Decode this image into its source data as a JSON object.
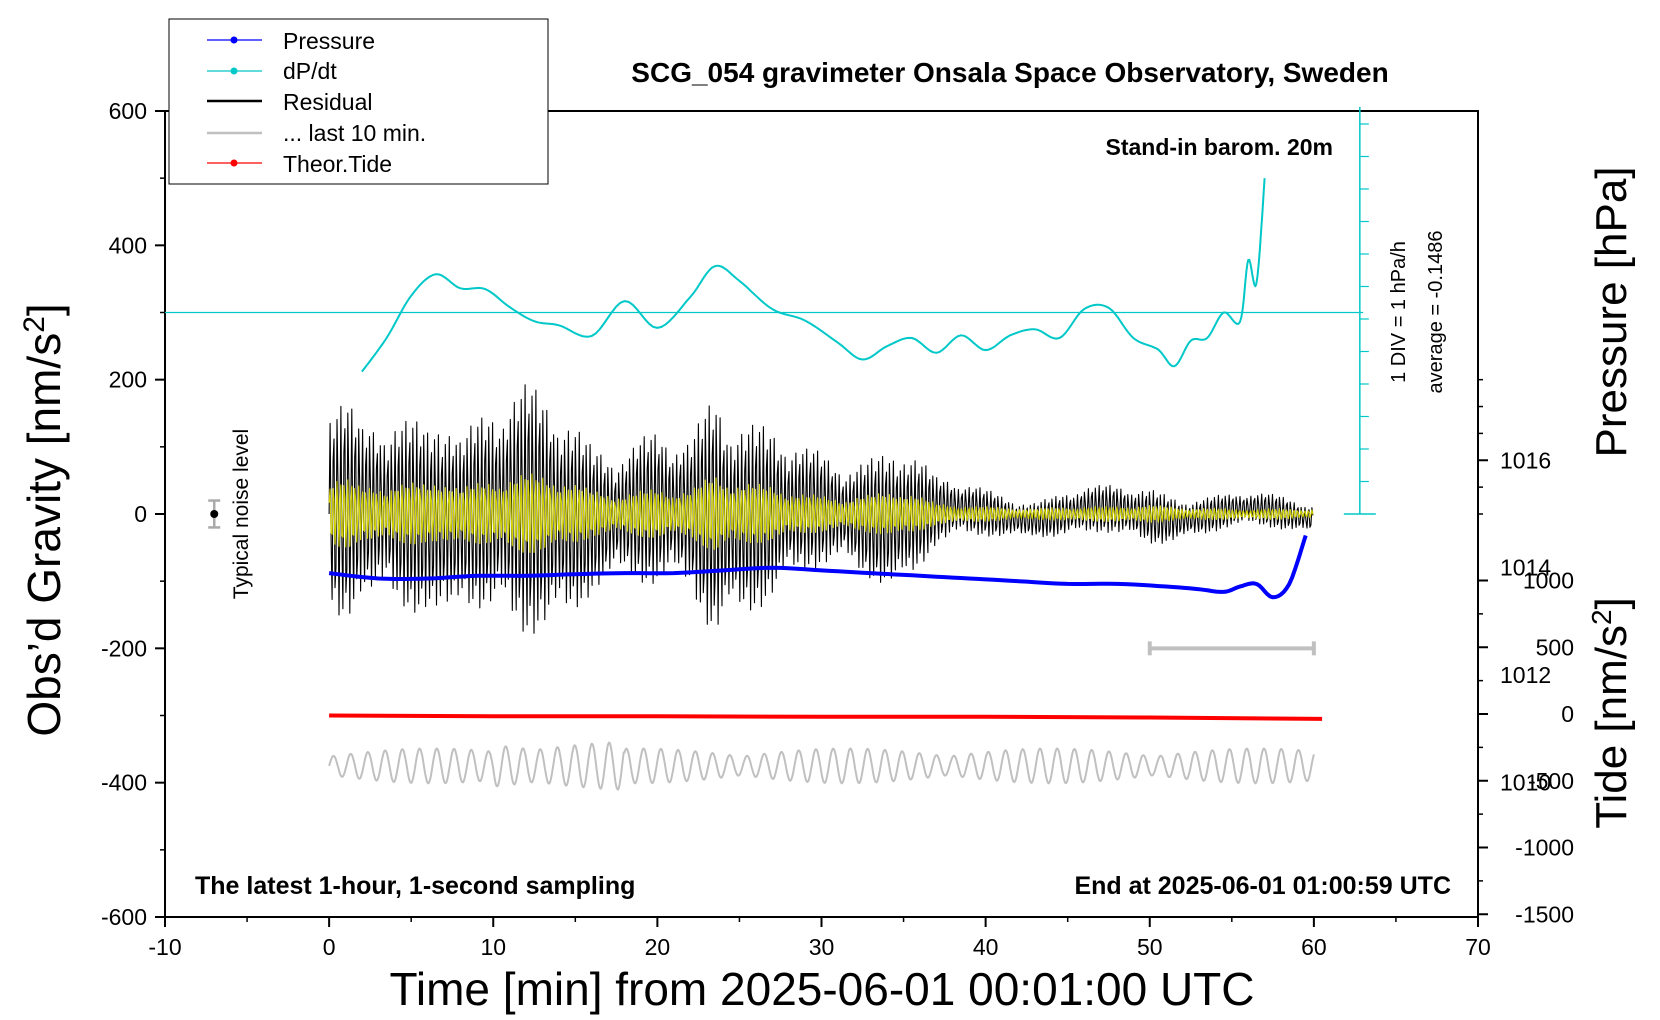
{
  "chart_data": {
    "type": "line",
    "title": "SCG_054 gravimeter Onsala Space Observatory, Sweden",
    "xlabel": "Time [min] from 2025-06-01 00:01:00 UTC",
    "ylabel_left": "Obs’d Gravity [nm/s²]",
    "ylabel_right_upper": "Pressure [hPa]",
    "ylabel_right_lower": "Tide [nm/s²]",
    "xlim": [
      -10,
      70
    ],
    "ylim": [
      -600,
      600
    ],
    "pressure_ylim": [
      1008,
      1018
    ],
    "tide_ylim": [
      -1500,
      1500
    ],
    "x_ticks": [
      "-10",
      "0",
      "10",
      "20",
      "30",
      "40",
      "50",
      "60",
      "70"
    ],
    "y_ticks": [
      "600",
      "400",
      "200",
      "0",
      "-200",
      "-400",
      "-600"
    ],
    "pressure_ticks": [
      "1016",
      "1014",
      "1012",
      "1010"
    ],
    "tide_ticks": [
      "1000",
      "500",
      "0",
      "-500",
      "-1000",
      "-1500"
    ],
    "legend": [
      {
        "name": "Pressure",
        "color": "#0000ff",
        "marker": true
      },
      {
        "name": "dP/dt",
        "color": "#00c8c8",
        "marker": true
      },
      {
        "name": "Residual",
        "color": "#000000",
        "marker": false
      },
      {
        "name": "... last 10 min.",
        "color": "#c0c0c0",
        "marker": false
      },
      {
        "name": "Theor.Tide",
        "color": "#ff0000",
        "marker": true
      }
    ],
    "legend_position": "top-left",
    "annotations": {
      "stand_in": "Stand-in barom. 20m",
      "div_label": "1 DIV = 1 hPa/h",
      "average_label": "average = -0.1486",
      "noise_label": "Typical noise level",
      "bottom_left": "The latest 1-hour, 1-second sampling",
      "bottom_right": "End at 2025-06-01 01:00:59 UTC"
    },
    "series": [
      {
        "name": "Pressure",
        "color": "#0000ff",
        "x": [
          0,
          3,
          6,
          9,
          12,
          15,
          18,
          21,
          24,
          27,
          30,
          33,
          36,
          39,
          42,
          45,
          48,
          51,
          53,
          54.5,
          55.5,
          56.5,
          57.5,
          58.5,
          59.5
        ],
        "values": [
          1013.9,
          1013.8,
          1013.8,
          1013.85,
          1013.85,
          1013.88,
          1013.9,
          1013.9,
          1013.95,
          1014.0,
          1013.95,
          1013.9,
          1013.85,
          1013.8,
          1013.75,
          1013.7,
          1013.7,
          1013.65,
          1013.6,
          1013.55,
          1013.65,
          1013.7,
          1013.45,
          1013.7,
          1014.6
        ]
      },
      {
        "name": "dP/dt",
        "color": "#00c8c8",
        "x": [
          2,
          3.5,
          5,
          6.5,
          8,
          9.5,
          11,
          12.5,
          14,
          16,
          18,
          20,
          22,
          23.5,
          25,
          27,
          29,
          31,
          32.5,
          34,
          35.5,
          37,
          38.5,
          40,
          41.5,
          43,
          44.5,
          46,
          47.5,
          49,
          50.5,
          51.5,
          52.5,
          53.5,
          54.5,
          55.5,
          56,
          56.5,
          57
        ],
        "values": [
          212,
          262,
          325,
          357,
          336,
          335,
          308,
          287,
          281,
          265,
          317,
          277,
          323,
          369,
          347,
          305,
          288,
          255,
          230,
          250,
          262,
          240,
          266,
          244,
          266,
          275,
          262,
          305,
          307,
          262,
          245,
          220,
          258,
          262,
          300,
          286,
          378,
          343,
          500
        ]
      },
      {
        "name": "Residual",
        "color": "#000000"
      },
      {
        "name": "... last 10 min.",
        "color": "#c0c0c0"
      },
      {
        "name": "Theor.Tide",
        "color": "#ff0000",
        "x": [
          0,
          10,
          20,
          30,
          40,
          50,
          60.5
        ],
        "values": [
          -300,
          -301,
          -301,
          -302,
          -302,
          -303,
          -305
        ]
      }
    ],
    "noise_bar": {
      "x": -7,
      "y": 0,
      "half_range": 20
    },
    "window_bar": {
      "x_start": 50,
      "x_end": 60,
      "y": -200
    }
  }
}
